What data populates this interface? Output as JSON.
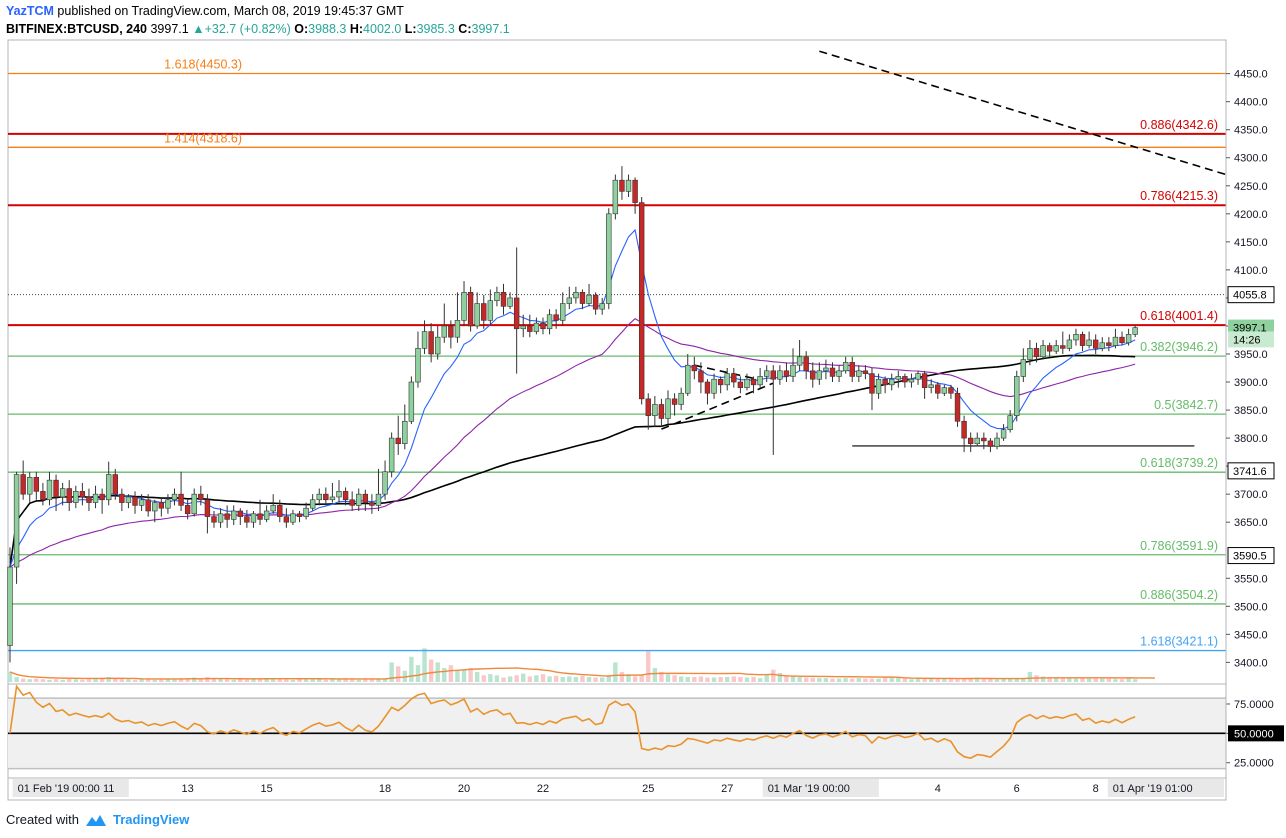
{
  "header": {
    "author": "YazTCM",
    "published": "published on TradingView.com, March 08, 2019 19:45:37 GMT",
    "symbol": "BITFINEX:BTCUSD, 240",
    "last": "3997.1",
    "change": "+32.7 (+0.82%)",
    "o_label": "O:",
    "o": "3988.3",
    "h_label": "H:",
    "h": "4002.0",
    "l_label": "L:",
    "l": "3985.3",
    "c_label": "C:",
    "c": "3997.1"
  },
  "footer": {
    "created_with": "Created with",
    "brand": "TradingView"
  },
  "colors": {
    "up": "#26a69a",
    "down": "#ef5350",
    "fib_orange": "#f57f17",
    "fib_red": "#d50000",
    "fib_green": "#66bb6a",
    "fib_blue": "#42a5f5",
    "sma": "#000000",
    "ema_fast": "#2962ff",
    "ema_slow": "#8e24aa",
    "rsi": "#e8932c",
    "vol_ma": "#f0883e"
  },
  "chart_data": {
    "type": "candlestick",
    "y_range": [
      3365,
      4510
    ],
    "y_ticks": [
      3400,
      3450,
      3500,
      3550,
      3650,
      3700,
      3750,
      3800,
      3850,
      3900,
      3950,
      4000,
      4050,
      4100,
      4150,
      4200,
      4250,
      4300,
      4350,
      4400,
      4450
    ],
    "x_range": [
      0,
      180
    ],
    "x_labels": [
      {
        "i": 1,
        "label": "01 Feb '19   00:00",
        "boxed": true
      },
      {
        "i": 15,
        "label": "11"
      },
      {
        "i": 27,
        "label": "13"
      },
      {
        "i": 39,
        "label": "15"
      },
      {
        "i": 57,
        "label": "18"
      },
      {
        "i": 69,
        "label": "20"
      },
      {
        "i": 81,
        "label": "22"
      },
      {
        "i": 97,
        "label": "25"
      },
      {
        "i": 109,
        "label": "27"
      },
      {
        "i": 115,
        "label": "01 Mar '19   00:00",
        "boxed": true
      },
      {
        "i": 141,
        "label": "4"
      },
      {
        "i": 153,
        "label": "6"
      },
      {
        "i": 165,
        "label": "8"
      },
      {
        "i": 177,
        "label": "01 Apr '19   01:00",
        "boxed": true
      }
    ],
    "price_tags": [
      {
        "value": 4055.8,
        "label": "4055.8",
        "style": "white"
      },
      {
        "value": 3997.1,
        "label": "3997.1",
        "style": "green"
      },
      {
        "value": 3976,
        "label": "14:26",
        "style": "green-light"
      },
      {
        "value": 3741.6,
        "label": "3741.6",
        "style": "white"
      },
      {
        "value": 3590.5,
        "label": "3590.5",
        "style": "white"
      }
    ],
    "fib_levels": [
      {
        "value": 4450.3,
        "label": "1.618(4450.3)",
        "color": "#f57f17",
        "side": "left"
      },
      {
        "value": 4342.6,
        "label": "0.886(4342.6)",
        "color": "#d50000",
        "side": "right",
        "heavy": true
      },
      {
        "value": 4318.6,
        "label": "1.414(4318.6)",
        "color": "#f57f17",
        "side": "left"
      },
      {
        "value": 4215.3,
        "label": "0.786(4215.3)",
        "color": "#d50000",
        "side": "right",
        "heavy": true
      },
      {
        "value": 4001.4,
        "label": "0.618(4001.4)",
        "color": "#d50000",
        "side": "right",
        "heavy": true
      },
      {
        "value": 3946.2,
        "label": "0.382(3946.2)",
        "color": "#66bb6a",
        "side": "right"
      },
      {
        "value": 3842.7,
        "label": "0.5(3842.7)",
        "color": "#66bb6a",
        "side": "right"
      },
      {
        "value": 3739.2,
        "label": "0.618(3739.2)",
        "color": "#66bb6a",
        "side": "right"
      },
      {
        "value": 3591.9,
        "label": "0.786(3591.9)",
        "color": "#66bb6a",
        "side": "right"
      },
      {
        "value": 3504.2,
        "label": "0.886(3504.2)",
        "color": "#66bb6a",
        "side": "right"
      },
      {
        "value": 3421.1,
        "label": "1.618(3421.1)",
        "color": "#42a5f5",
        "side": "right"
      }
    ],
    "trendlines": [
      {
        "from": [
          128,
          3786
        ],
        "to": [
          180,
          3786
        ],
        "style": "solid"
      },
      {
        "from": [
          99,
          3816
        ],
        "to": [
          116,
          3898
        ],
        "style": "dashed"
      },
      {
        "from": [
          104,
          3930
        ],
        "to": [
          114,
          3904
        ],
        "style": "dashed"
      },
      {
        "from": [
          123,
          4490
        ],
        "to": [
          190,
          4270
        ],
        "style": "dashed"
      }
    ],
    "candles": [
      [
        3430,
        3570,
        3400,
        3605
      ],
      [
        3570,
        3735,
        3540,
        3740
      ],
      [
        3735,
        3700,
        3690,
        3760
      ],
      [
        3700,
        3730,
        3685,
        3740
      ],
      [
        3730,
        3705,
        3690,
        3740
      ],
      [
        3705,
        3690,
        3680,
        3720
      ],
      [
        3690,
        3725,
        3680,
        3740
      ],
      [
        3725,
        3695,
        3670,
        3735
      ],
      [
        3695,
        3710,
        3680,
        3720
      ],
      [
        3710,
        3685,
        3670,
        3725
      ],
      [
        3685,
        3705,
        3675,
        3715
      ],
      [
        3705,
        3695,
        3680,
        3720
      ],
      [
        3695,
        3685,
        3670,
        3710
      ],
      [
        3685,
        3700,
        3675,
        3715
      ],
      [
        3700,
        3690,
        3665,
        3710
      ],
      [
        3690,
        3735,
        3680,
        3758
      ],
      [
        3735,
        3700,
        3690,
        3745
      ],
      [
        3700,
        3685,
        3670,
        3710
      ],
      [
        3685,
        3695,
        3675,
        3700
      ],
      [
        3695,
        3680,
        3665,
        3705
      ],
      [
        3680,
        3690,
        3670,
        3700
      ],
      [
        3690,
        3670,
        3660,
        3700
      ],
      [
        3670,
        3685,
        3650,
        3690
      ],
      [
        3685,
        3675,
        3660,
        3695
      ],
      [
        3675,
        3690,
        3665,
        3700
      ],
      [
        3690,
        3700,
        3680,
        3710
      ],
      [
        3700,
        3680,
        3670,
        3740
      ],
      [
        3680,
        3665,
        3655,
        3690
      ],
      [
        3665,
        3700,
        3660,
        3710
      ],
      [
        3700,
        3690,
        3680,
        3715
      ],
      [
        3690,
        3660,
        3630,
        3700
      ],
      [
        3660,
        3650,
        3640,
        3670
      ],
      [
        3650,
        3665,
        3640,
        3675
      ],
      [
        3665,
        3655,
        3640,
        3680
      ],
      [
        3655,
        3670,
        3645,
        3680
      ],
      [
        3670,
        3660,
        3645,
        3675
      ],
      [
        3660,
        3650,
        3640,
        3672
      ],
      [
        3650,
        3665,
        3640,
        3670
      ],
      [
        3665,
        3655,
        3645,
        3690
      ],
      [
        3655,
        3670,
        3650,
        3680
      ],
      [
        3670,
        3680,
        3665,
        3700
      ],
      [
        3680,
        3660,
        3650,
        3690
      ],
      [
        3660,
        3650,
        3640,
        3675
      ],
      [
        3650,
        3665,
        3645,
        3672
      ],
      [
        3665,
        3660,
        3650,
        3670
      ],
      [
        3660,
        3675,
        3655,
        3685
      ],
      [
        3675,
        3690,
        3670,
        3700
      ],
      [
        3690,
        3700,
        3680,
        3710
      ],
      [
        3700,
        3690,
        3680,
        3712
      ],
      [
        3690,
        3695,
        3685,
        3720
      ],
      [
        3695,
        3705,
        3685,
        3725
      ],
      [
        3705,
        3690,
        3680,
        3712
      ],
      [
        3690,
        3680,
        3670,
        3705
      ],
      [
        3680,
        3700,
        3670,
        3710
      ],
      [
        3700,
        3685,
        3670,
        3708
      ],
      [
        3685,
        3680,
        3665,
        3700
      ],
      [
        3680,
        3700,
        3670,
        3745
      ],
      [
        3700,
        3740,
        3690,
        3760
      ],
      [
        3740,
        3800,
        3730,
        3810
      ],
      [
        3800,
        3790,
        3770,
        3840
      ],
      [
        3790,
        3830,
        3780,
        3860
      ],
      [
        3830,
        3900,
        3825,
        3910
      ],
      [
        3900,
        3960,
        3890,
        3990
      ],
      [
        3960,
        3990,
        3950,
        4010
      ],
      [
        3990,
        3950,
        3935,
        4005
      ],
      [
        3950,
        3980,
        3940,
        4000
      ],
      [
        3980,
        4000,
        3970,
        4040
      ],
      [
        4000,
        3980,
        3960,
        4010
      ],
      [
        3980,
        4010,
        3970,
        4060
      ],
      [
        4010,
        4060,
        4000,
        4080
      ],
      [
        4060,
        4000,
        3990,
        4070
      ],
      [
        4000,
        4040,
        3995,
        4060
      ],
      [
        4040,
        4010,
        3995,
        4055
      ],
      [
        4010,
        4045,
        4000,
        4065
      ],
      [
        4045,
        4060,
        4035,
        4070
      ],
      [
        4060,
        4035,
        4020,
        4075
      ],
      [
        4035,
        4050,
        4030,
        4060
      ],
      [
        4050,
        3995,
        3915,
        4140
      ],
      [
        3995,
        4000,
        3980,
        4020
      ],
      [
        4000,
        3990,
        3980,
        4020
      ],
      [
        3990,
        4005,
        3985,
        4015
      ],
      [
        4005,
        3995,
        3985,
        4015
      ],
      [
        3995,
        4020,
        3985,
        4030
      ],
      [
        4020,
        4010,
        3995,
        4030
      ],
      [
        4010,
        4040,
        4000,
        4060
      ],
      [
        4040,
        4050,
        4030,
        4070
      ],
      [
        4050,
        4060,
        4040,
        4070
      ],
      [
        4060,
        4040,
        4030,
        4065
      ],
      [
        4040,
        4055,
        4035,
        4075
      ],
      [
        4055,
        4030,
        4020,
        4060
      ],
      [
        4030,
        4040,
        4020,
        4050
      ],
      [
        4040,
        4200,
        4030,
        4210
      ],
      [
        4200,
        4260,
        4190,
        4270
      ],
      [
        4260,
        4240,
        4225,
        4285
      ],
      [
        4240,
        4260,
        4230,
        4270
      ],
      [
        4260,
        4220,
        4200,
        4265
      ],
      [
        4220,
        3870,
        3860,
        4230
      ],
      [
        3870,
        3840,
        3815,
        3880
      ],
      [
        3840,
        3860,
        3820,
        3875
      ],
      [
        3860,
        3835,
        3820,
        3870
      ],
      [
        3835,
        3870,
        3825,
        3885
      ],
      [
        3870,
        3860,
        3840,
        3880
      ],
      [
        3860,
        3880,
        3850,
        3890
      ],
      [
        3880,
        3930,
        3875,
        3950
      ],
      [
        3930,
        3920,
        3905,
        3945
      ],
      [
        3920,
        3900,
        3880,
        3935
      ],
      [
        3900,
        3880,
        3860,
        3905
      ],
      [
        3880,
        3905,
        3870,
        3915
      ],
      [
        3905,
        3895,
        3880,
        3910
      ],
      [
        3895,
        3915,
        3885,
        3925
      ],
      [
        3915,
        3900,
        3890,
        3925
      ],
      [
        3900,
        3890,
        3880,
        3910
      ],
      [
        3890,
        3905,
        3885,
        3915
      ],
      [
        3905,
        3895,
        3880,
        3910
      ],
      [
        3895,
        3910,
        3890,
        3925
      ],
      [
        3910,
        3920,
        3900,
        3930
      ],
      [
        3920,
        3905,
        3770,
        3930
      ],
      [
        3905,
        3920,
        3895,
        3930
      ],
      [
        3920,
        3910,
        3900,
        3935
      ],
      [
        3910,
        3930,
        3900,
        3960
      ],
      [
        3930,
        3945,
        3920,
        3975
      ],
      [
        3945,
        3920,
        3905,
        3955
      ],
      [
        3920,
        3905,
        3890,
        3935
      ],
      [
        3905,
        3920,
        3895,
        3935
      ],
      [
        3920,
        3925,
        3905,
        3940
      ],
      [
        3925,
        3910,
        3900,
        3935
      ],
      [
        3910,
        3920,
        3900,
        3930
      ],
      [
        3920,
        3935,
        3915,
        3945
      ],
      [
        3935,
        3910,
        3900,
        3945
      ],
      [
        3910,
        3920,
        3900,
        3930
      ],
      [
        3920,
        3915,
        3905,
        3930
      ],
      [
        3915,
        3880,
        3850,
        3925
      ],
      [
        3880,
        3905,
        3870,
        3915
      ],
      [
        3905,
        3895,
        3880,
        3910
      ],
      [
        3895,
        3905,
        3885,
        3915
      ],
      [
        3905,
        3910,
        3890,
        3920
      ],
      [
        3910,
        3900,
        3890,
        3915
      ],
      [
        3900,
        3905,
        3890,
        3915
      ],
      [
        3905,
        3915,
        3895,
        3920
      ],
      [
        3915,
        3890,
        3870,
        3920
      ],
      [
        3890,
        3895,
        3880,
        3905
      ],
      [
        3895,
        3880,
        3870,
        3900
      ],
      [
        3880,
        3890,
        3875,
        3895
      ],
      [
        3890,
        3880,
        3870,
        3895
      ],
      [
        3880,
        3830,
        3820,
        3890
      ],
      [
        3830,
        3800,
        3775,
        3840
      ],
      [
        3800,
        3790,
        3775,
        3810
      ],
      [
        3790,
        3800,
        3785,
        3810
      ],
      [
        3800,
        3795,
        3780,
        3810
      ],
      [
        3795,
        3785,
        3775,
        3800
      ],
      [
        3785,
        3800,
        3780,
        3810
      ],
      [
        3800,
        3815,
        3795,
        3825
      ],
      [
        3815,
        3840,
        3810,
        3850
      ],
      [
        3840,
        3910,
        3830,
        3920
      ],
      [
        3910,
        3940,
        3900,
        3960
      ],
      [
        3940,
        3960,
        3930,
        3975
      ],
      [
        3960,
        3945,
        3935,
        3970
      ],
      [
        3945,
        3965,
        3940,
        3975
      ],
      [
        3965,
        3955,
        3945,
        3970
      ],
      [
        3955,
        3965,
        3950,
        3975
      ],
      [
        3965,
        3960,
        3950,
        3990
      ],
      [
        3960,
        3975,
        3955,
        3985
      ],
      [
        3975,
        3985,
        3965,
        3995
      ],
      [
        3985,
        3965,
        3955,
        3990
      ],
      [
        3965,
        3975,
        3960,
        3990
      ],
      [
        3975,
        3960,
        3950,
        3985
      ],
      [
        3960,
        3970,
        3955,
        3980
      ],
      [
        3970,
        3965,
        3955,
        3980
      ],
      [
        3965,
        3980,
        3960,
        3995
      ],
      [
        3980,
        3970,
        3965,
        3990
      ],
      [
        3970,
        3985,
        3965,
        3995
      ],
      [
        3985,
        3997,
        3980,
        4002
      ]
    ],
    "volume": {
      "y_range": [
        3365,
        3420
      ],
      "values": [
        18,
        9,
        6,
        5,
        6,
        5,
        4,
        5,
        4,
        6,
        5,
        4,
        5,
        6,
        7,
        9,
        6,
        7,
        5,
        4,
        5,
        6,
        4,
        5,
        6,
        5,
        7,
        6,
        8,
        5,
        9,
        7,
        6,
        5,
        4,
        6,
        5,
        7,
        5,
        5,
        6,
        6,
        5,
        4,
        5,
        6,
        7,
        5,
        4,
        6,
        6,
        7,
        5,
        4,
        5,
        6,
        6,
        5,
        35,
        28,
        20,
        45,
        30,
        60,
        40,
        35,
        25,
        30,
        20,
        22,
        25,
        18,
        12,
        14,
        12,
        8,
        10,
        12,
        15,
        10,
        12,
        14,
        10,
        11,
        9,
        10,
        9,
        11,
        9,
        8,
        8,
        10,
        35,
        18,
        14,
        10,
        12,
        55,
        25,
        18,
        14,
        12,
        10,
        9,
        9,
        10,
        8,
        8,
        9,
        9,
        10,
        9,
        8,
        9,
        7,
        14,
        22,
        16,
        10,
        10,
        9,
        8,
        7,
        7,
        7,
        6,
        6,
        7,
        6,
        7,
        6,
        6,
        6,
        7,
        7,
        7,
        6,
        5,
        6,
        6,
        6,
        6,
        7,
        6,
        5,
        6,
        7,
        8,
        6,
        6,
        5,
        6,
        6,
        7,
        7,
        18,
        12,
        10,
        8,
        7,
        6,
        7,
        6,
        7,
        6,
        6,
        6,
        6,
        5,
        5,
        6,
        5,
        6,
        5,
        5
      ]
    },
    "rsi": {
      "y_range": [
        12,
        92
      ],
      "ticks": [
        25,
        50,
        75
      ],
      "tick_labels": [
        "25.0000",
        "50.0000",
        "75.0000"
      ],
      "upper_band": 80,
      "lower_band": 20
    }
  }
}
